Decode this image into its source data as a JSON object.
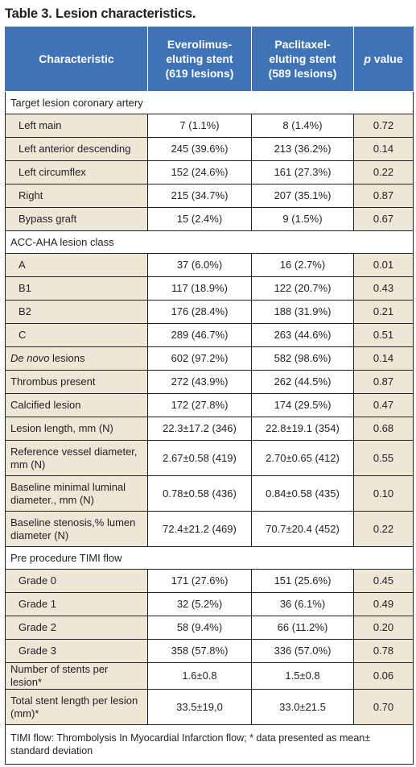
{
  "title": "Table 3. Lesion characteristics.",
  "table": {
    "headers": {
      "characteristic": "Characteristic",
      "eve": [
        "Everolimus-",
        "eluting stent",
        "(619 lesions)"
      ],
      "pac": [
        "Paclitaxel-",
        "eluting stent",
        "(589 lesions)"
      ],
      "p_italic": "p",
      "p_rest": " value"
    },
    "rows": [
      {
        "group": "Target lesion coronary artery"
      },
      {
        "label": "Left main",
        "eve": "7 (1.1%)",
        "pac": "8 (1.4%)",
        "p": "0.72",
        "sub": true
      },
      {
        "label": "Left anterior descending",
        "eve": "245 (39.6%)",
        "pac": "213 (36.2%)",
        "p": "0.14",
        "sub": true
      },
      {
        "label": "Left circumflex",
        "eve": "152 (24.6%)",
        "pac": "161 (27.3%)",
        "p": "0.22",
        "sub": true
      },
      {
        "label": "Right",
        "eve": "215 (34.7%)",
        "pac": "207 (35.1%)",
        "p": "0.87",
        "sub": true
      },
      {
        "label": "Bypass graft",
        "eve": "15 (2.4%)",
        "pac": "9 (1.5%)",
        "p": "0.67",
        "sub": true
      },
      {
        "group": "ACC-AHA lesion class"
      },
      {
        "label": "A",
        "eve": "37 (6.0%)",
        "pac": "16 (2.7%)",
        "p": "0.01",
        "sub": true
      },
      {
        "label": "B1",
        "eve": "117 (18.9%)",
        "pac": "122 (20.7%)",
        "p": "0.43",
        "sub": true
      },
      {
        "label": "B2",
        "eve": "176 (28.4%)",
        "pac": "188 (31.9%)",
        "p": "0.21",
        "sub": true
      },
      {
        "label": "C",
        "eve": "289 (46.7%)",
        "pac": "263 (44.6%)",
        "p": "0.51",
        "sub": true
      },
      {
        "label_italic": "De novo",
        "label": " lesions",
        "eve": "602 (97.2%)",
        "pac": "582 (98.6%)",
        "p": "0.14"
      },
      {
        "label": "Thrombus present",
        "eve": "272 (43.9%)",
        "pac": "262 (44.5%)",
        "p": "0.87"
      },
      {
        "label": "Calcified lesion",
        "eve": "172 (27.8%)",
        "pac": "174 (29.5%)",
        "p": "0.47"
      },
      {
        "label": "Lesion length, mm (N)",
        "eve": "22.3±17.2 (346)",
        "pac": "22.8±19.1 (354)",
        "p": "0.68"
      },
      {
        "label": "Reference vessel diameter, mm (N)",
        "eve": "2.67±0.58 (419)",
        "pac": "2.70±0.65 (412)",
        "p": "0.55",
        "tall": true
      },
      {
        "label": "Baseline minimal luminal diameter., mm (N)",
        "eve": "0.78±0.58 (436)",
        "pac": "0.84±0.58 (435)",
        "p": "0.10",
        "tall": true
      },
      {
        "label": "Baseline stenosis,% lumen diameter (N)",
        "eve": "72.4±21.2 (469)",
        "pac": "70.7±20.4 (452)",
        "p": "0.22",
        "tall": true
      },
      {
        "group": "Pre procedure TIMI flow"
      },
      {
        "label": "Grade 0",
        "eve": "171 (27.6%)",
        "pac": "151 (25.6%)",
        "p": "0.45",
        "sub": true
      },
      {
        "label": "Grade 1",
        "eve": "32 (5.2%)",
        "pac": "36 (6.1%)",
        "p": "0.49",
        "sub": true
      },
      {
        "label": "Grade 2",
        "eve": "58 (9.4%)",
        "pac": "66 (11.2%)",
        "p": "0.20",
        "sub": true
      },
      {
        "label": "Grade 3",
        "eve": "358 (57.8%)",
        "pac": "336 (57.0%)",
        "p": "0.78",
        "sub": true
      },
      {
        "label": "Number of stents per lesion*",
        "eve": "1.6±0.8",
        "pac": "1.5±0.8",
        "p": "0.06"
      },
      {
        "label": "Total stent length per lesion (mm)*",
        "eve": "33.5±19,0",
        "pac": "33.0±21.5",
        "p": "0.70",
        "tall": true
      }
    ],
    "footnote": "TIMI flow: Thrombolysis In Myocardial Infarction flow; * data presented as mean± standard deviation"
  },
  "colors": {
    "header_bg": "#3f73b5",
    "shade_bg": "#ede7d8",
    "text": "#231f20"
  }
}
